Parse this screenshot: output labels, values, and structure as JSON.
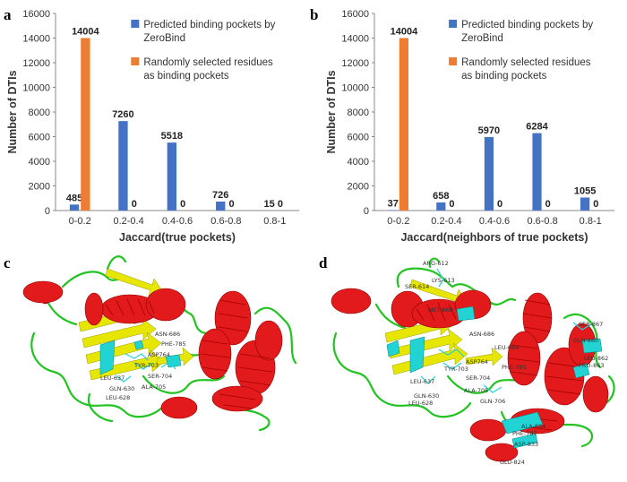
{
  "panels": {
    "a": "a",
    "b": "b",
    "c": "c",
    "d": "d"
  },
  "colors": {
    "predicted": "#4472C4",
    "random": "#ED7D31",
    "helix": "#E31A1C",
    "sheet": "#E6E600",
    "loop": "#22C322",
    "pocket": "#22D3D3"
  },
  "chart_data": [
    {
      "type": "bar",
      "panel": "a",
      "categories": [
        "0-0.2",
        "0.2-0.4",
        "0.4-0.6",
        "0.6-0.8",
        "0.8-1"
      ],
      "series": [
        {
          "name": "Predicted binding pockets by ZeroBind",
          "values": [
            485,
            7260,
            5518,
            726,
            15
          ]
        },
        {
          "name": "Randomly selected residues as binding pockets",
          "values": [
            14004,
            0,
            0,
            0,
            0
          ]
        }
      ],
      "xlabel": "Jaccard(true pockets)",
      "ylabel": "Number of DTIs",
      "ylim": [
        0,
        16000
      ],
      "yticks": [
        0,
        2000,
        4000,
        6000,
        8000,
        10000,
        12000,
        14000,
        16000
      ],
      "grid": false,
      "legend": "top-right"
    },
    {
      "type": "bar",
      "panel": "b",
      "categories": [
        "0-0.2",
        "0.2-0.4",
        "0.4-0.6",
        "0.6-0.8",
        "0.8-1"
      ],
      "series": [
        {
          "name": "Predicted binding pockets by ZeroBind",
          "values": [
            37,
            658,
            5970,
            6284,
            1055
          ]
        },
        {
          "name": "Randomly selected residues as binding pockets",
          "values": [
            14004,
            0,
            0,
            0,
            0
          ]
        }
      ],
      "xlabel": "Jaccard(neighbors of true pockets)",
      "ylabel": "Number of DTIs",
      "ylim": [
        0,
        16000
      ],
      "yticks": [
        0,
        2000,
        4000,
        6000,
        8000,
        10000,
        12000,
        14000,
        16000
      ],
      "grid": false,
      "legend": "top-right"
    }
  ],
  "structure_c": {
    "residues": [
      "ASN-686",
      "PHE-785",
      "ASP764",
      "TYR-703",
      "SER-704",
      "ALA-705",
      "LEU-637",
      "LEU-628",
      "GLN-630"
    ]
  },
  "structure_d": {
    "residues": [
      "ARG-612",
      "LYS-613",
      "SER-614",
      "MET-669",
      "ASN-686",
      "LEU-684",
      "ASP764",
      "TYR-703",
      "SER-704",
      "ALA-705",
      "GLN-706",
      "PHE-785",
      "LEU-637",
      "GLN-630",
      "SER-867",
      "GLN-860",
      "LEU-862",
      "PRO-863",
      "ALA-834",
      "PHE-787",
      "ASP-833",
      "GLU-824",
      "LEU-628"
    ]
  }
}
